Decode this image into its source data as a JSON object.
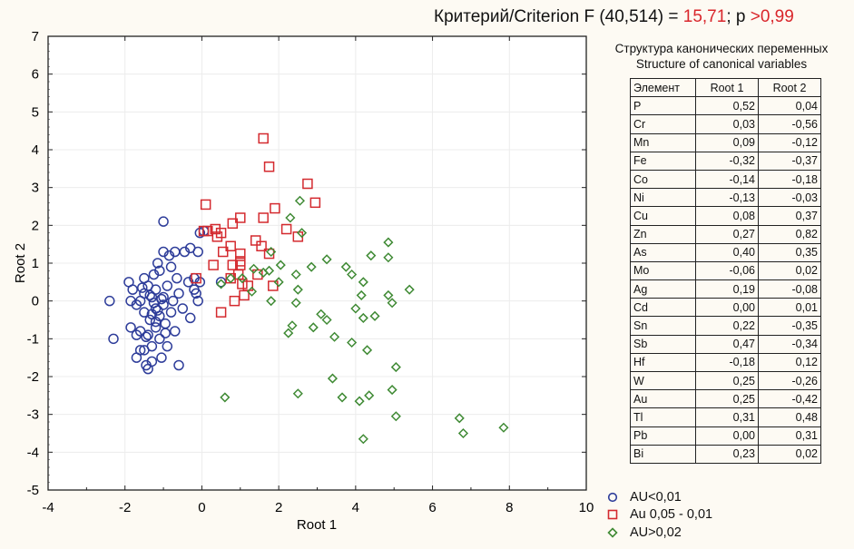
{
  "header": {
    "criterion_prefix": "Критерий/Criterion F (40,514) = ",
    "criterion_value": "15,71",
    "criterion_sep": ";   p ",
    "p_value": ">0,99"
  },
  "structure": {
    "title_ru": "Структура канонических переменных",
    "title_en": "Structure of canonical variables",
    "columns": [
      "Элемент",
      "Root 1",
      "Root 2"
    ],
    "rows": [
      [
        "P",
        "0,52",
        "0,04"
      ],
      [
        "Cr",
        "0,03",
        "-0,56"
      ],
      [
        "Mn",
        "0,09",
        "-0,12"
      ],
      [
        "Fe",
        "-0,32",
        "-0,37"
      ],
      [
        "Co",
        "-0,14",
        "-0,18"
      ],
      [
        "Ni",
        "-0,13",
        "-0,03"
      ],
      [
        "Cu",
        "0,08",
        "0,37"
      ],
      [
        "Zn",
        "0,27",
        "0,82"
      ],
      [
        "As",
        "0,40",
        "0,35"
      ],
      [
        "Mo",
        "-0,06",
        "0,02"
      ],
      [
        "Ag",
        "0,19",
        "-0,08"
      ],
      [
        "Cd",
        "0,00",
        "0,01"
      ],
      [
        "Sn",
        "0,22",
        "-0,35"
      ],
      [
        "Sb",
        "0,47",
        "-0,34"
      ],
      [
        "Hf",
        "-0,18",
        "0,12"
      ],
      [
        "W",
        "0,25",
        "-0,26"
      ],
      [
        "Au",
        "0,25",
        "-0,42"
      ],
      [
        "Tl",
        "0,31",
        "0,48"
      ],
      [
        "Pb",
        "0,00",
        "0,31"
      ],
      [
        "Bi",
        "0,23",
        "0,02"
      ]
    ]
  },
  "chart_data": {
    "type": "scatter",
    "title": "",
    "xlabel": "Root 1",
    "ylabel": "Root 2",
    "xlim": [
      -4,
      10
    ],
    "ylim": [
      -5,
      7
    ],
    "xticks": [
      -4,
      -2,
      0,
      2,
      4,
      6,
      8,
      10
    ],
    "yticks": [
      -5,
      -4,
      -3,
      -2,
      -1,
      0,
      1,
      2,
      3,
      4,
      5,
      6,
      7
    ],
    "grid": true,
    "legend_position": "bottom-right-outside",
    "series": [
      {
        "name": "AU<0,01",
        "marker": "circle",
        "color": "#2e3d9a",
        "points": [
          [
            -2.4,
            0.0
          ],
          [
            -2.3,
            -1.0
          ],
          [
            -1.9,
            0.5
          ],
          [
            -1.8,
            0.3
          ],
          [
            -1.85,
            -0.7
          ],
          [
            -1.7,
            -1.5
          ],
          [
            -1.7,
            -0.1
          ],
          [
            -1.6,
            0.0
          ],
          [
            -1.6,
            -0.8
          ],
          [
            -1.5,
            0.6
          ],
          [
            -1.5,
            0.2
          ],
          [
            -1.5,
            -0.3
          ],
          [
            -1.5,
            -1.3
          ],
          [
            -1.45,
            -1.7
          ],
          [
            -1.4,
            -1.8
          ],
          [
            -1.4,
            -0.9
          ],
          [
            -1.4,
            0.4
          ],
          [
            -1.35,
            -0.5
          ],
          [
            -1.3,
            0.1
          ],
          [
            -1.3,
            -1.2
          ],
          [
            -1.3,
            -1.6
          ],
          [
            -1.25,
            0.7
          ],
          [
            -1.2,
            -0.2
          ],
          [
            -1.2,
            0.3
          ],
          [
            -1.2,
            -0.7
          ],
          [
            -1.15,
            1.0
          ],
          [
            -1.1,
            -0.4
          ],
          [
            -1.1,
            -1.0
          ],
          [
            -1.1,
            0.8
          ],
          [
            -1.05,
            -1.5
          ],
          [
            -1.0,
            0.1
          ],
          [
            -1.0,
            -0.1
          ],
          [
            -1.0,
            1.3
          ],
          [
            -0.95,
            -0.6
          ],
          [
            -0.9,
            0.4
          ],
          [
            -0.9,
            -1.2
          ],
          [
            -0.85,
            1.2
          ],
          [
            -0.8,
            -0.3
          ],
          [
            -0.8,
            0.9
          ],
          [
            -0.75,
            0.0
          ],
          [
            -0.7,
            -0.8
          ],
          [
            -0.7,
            1.3
          ],
          [
            -0.65,
            0.6
          ],
          [
            -0.6,
            -1.7
          ],
          [
            -0.6,
            0.2
          ],
          [
            -1.0,
            2.1
          ],
          [
            -0.5,
            -0.2
          ],
          [
            -0.45,
            1.3
          ],
          [
            -0.35,
            0.5
          ],
          [
            -0.3,
            1.4
          ],
          [
            -0.2,
            0.6
          ],
          [
            -0.15,
            0.2
          ],
          [
            -0.3,
            -0.45
          ],
          [
            -0.1,
            1.3
          ],
          [
            -0.05,
            1.8
          ],
          [
            0.05,
            1.85
          ],
          [
            -0.1,
            0.0
          ],
          [
            -0.2,
            0.3
          ],
          [
            0.5,
            0.5
          ],
          [
            -0.05,
            0.5
          ],
          [
            -1.3,
            -0.35
          ],
          [
            -1.25,
            -0.05
          ],
          [
            -1.15,
            -0.25
          ],
          [
            -1.05,
            0.05
          ],
          [
            -1.35,
            0.15
          ],
          [
            -1.2,
            -0.55
          ],
          [
            -1.45,
            -0.95
          ],
          [
            -1.6,
            -1.3
          ],
          [
            -1.55,
            0.35
          ],
          [
            -0.95,
            -0.85
          ],
          [
            -1.7,
            -0.9
          ],
          [
            -1.85,
            0.0
          ]
        ]
      },
      {
        "name": "Au 0,05 - 0,01",
        "marker": "square",
        "color": "#d42a2f",
        "points": [
          [
            1.6,
            4.3
          ],
          [
            1.75,
            3.55
          ],
          [
            2.75,
            3.1
          ],
          [
            1.6,
            2.2
          ],
          [
            0.1,
            2.55
          ],
          [
            0.5,
            1.8
          ],
          [
            1.9,
            2.45
          ],
          [
            2.95,
            2.6
          ],
          [
            1.0,
            2.2
          ],
          [
            0.8,
            2.05
          ],
          [
            0.35,
            1.9
          ],
          [
            0.15,
            1.85
          ],
          [
            0.05,
            1.85
          ],
          [
            0.4,
            1.7
          ],
          [
            0.55,
            1.3
          ],
          [
            0.75,
            1.45
          ],
          [
            1.0,
            1.25
          ],
          [
            1.0,
            1.05
          ],
          [
            1.0,
            0.95
          ],
          [
            0.8,
            0.95
          ],
          [
            1.4,
            1.6
          ],
          [
            1.55,
            1.45
          ],
          [
            1.75,
            1.25
          ],
          [
            2.2,
            1.9
          ],
          [
            2.5,
            1.7
          ],
          [
            1.85,
            0.4
          ],
          [
            1.2,
            0.4
          ],
          [
            1.05,
            0.45
          ],
          [
            0.3,
            0.95
          ],
          [
            -0.15,
            0.6
          ],
          [
            0.5,
            -0.3
          ],
          [
            0.85,
            0.0
          ],
          [
            1.1,
            0.15
          ],
          [
            1.45,
            0.7
          ],
          [
            0.75,
            0.6
          ],
          [
            0.95,
            0.7
          ]
        ]
      },
      {
        "name": "AU>0,02",
        "marker": "diamond",
        "color": "#3f8a34",
        "points": [
          [
            2.55,
            2.65
          ],
          [
            2.3,
            2.2
          ],
          [
            2.6,
            1.8
          ],
          [
            1.8,
            1.3
          ],
          [
            2.05,
            0.95
          ],
          [
            2.45,
            0.7
          ],
          [
            2.85,
            0.9
          ],
          [
            3.25,
            1.1
          ],
          [
            3.75,
            0.9
          ],
          [
            4.4,
            1.2
          ],
          [
            4.85,
            1.55
          ],
          [
            4.85,
            1.15
          ],
          [
            5.4,
            0.3
          ],
          [
            4.95,
            -0.05
          ],
          [
            4.85,
            0.15
          ],
          [
            4.2,
            0.5
          ],
          [
            4.15,
            0.15
          ],
          [
            4.0,
            -0.2
          ],
          [
            4.5,
            -0.4
          ],
          [
            4.2,
            -0.45
          ],
          [
            3.9,
            0.7
          ],
          [
            3.25,
            -0.5
          ],
          [
            3.1,
            -0.35
          ],
          [
            2.9,
            -0.7
          ],
          [
            2.5,
            0.3
          ],
          [
            2.45,
            -0.05
          ],
          [
            2.35,
            -0.65
          ],
          [
            2.25,
            -0.85
          ],
          [
            3.45,
            -0.95
          ],
          [
            3.9,
            -1.1
          ],
          [
            4.3,
            -1.3
          ],
          [
            5.05,
            -1.75
          ],
          [
            3.4,
            -2.05
          ],
          [
            4.95,
            -2.35
          ],
          [
            4.35,
            -2.5
          ],
          [
            4.1,
            -2.65
          ],
          [
            3.65,
            -2.55
          ],
          [
            2.5,
            -2.45
          ],
          [
            0.6,
            -2.55
          ],
          [
            5.05,
            -3.05
          ],
          [
            6.7,
            -3.1
          ],
          [
            6.8,
            -3.5
          ],
          [
            7.85,
            -3.35
          ],
          [
            4.2,
            -3.65
          ],
          [
            1.05,
            0.6
          ],
          [
            1.35,
            0.85
          ],
          [
            1.6,
            0.75
          ],
          [
            1.75,
            0.8
          ],
          [
            2.0,
            0.5
          ],
          [
            1.8,
            0.0
          ],
          [
            1.3,
            0.25
          ],
          [
            0.5,
            0.45
          ],
          [
            0.75,
            0.6
          ]
        ]
      }
    ]
  }
}
